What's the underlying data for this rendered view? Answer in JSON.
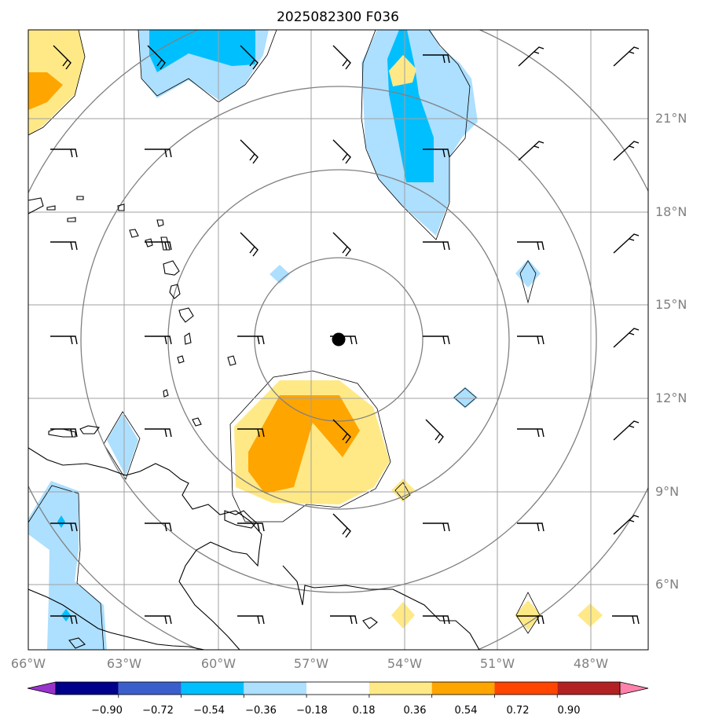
{
  "title": "2025082300 F036",
  "axes": {
    "lon_labels": [
      "66°W",
      "63°W",
      "60°W",
      "57°W",
      "54°W",
      "51°W",
      "48°W"
    ],
    "lat_labels": [
      "6°N",
      "9°N",
      "12°N",
      "15°N",
      "18°N",
      "21°N"
    ]
  },
  "colorbar": {
    "tick_labels": [
      "−0.90",
      "−0.72",
      "−0.54",
      "−0.36",
      "−0.18",
      "0.18",
      "0.36",
      "0.54",
      "0.72",
      "0.90"
    ],
    "colors": [
      "#9933cc",
      "#00008b",
      "#3a5fcd",
      "#00bfff",
      "#addfff",
      "#ffffff",
      "#ffe987",
      "#ffa500",
      "#ff4500",
      "#b22222",
      "#ff82ab"
    ]
  },
  "colors": {
    "light_blue": "#addfff",
    "cyan": "#00bfff",
    "yellow": "#ffe987",
    "orange": "#ffa500",
    "grid": "#a0a0a0",
    "range_rings": "#808080"
  },
  "center_marker": {
    "lon": -56.2,
    "lat": 13.9
  }
}
